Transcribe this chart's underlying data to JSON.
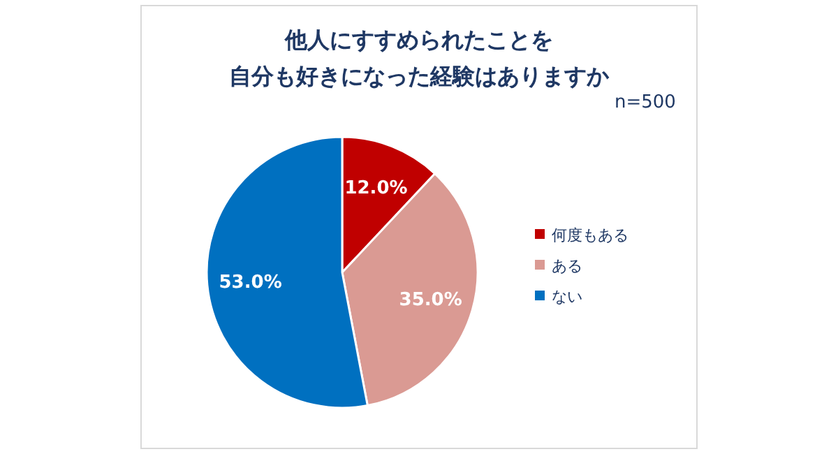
{
  "chart_data": {
    "type": "pie",
    "title": "他人にすすめられたことを",
    "subtitle": "自分も好きになった経験はありますか",
    "annotations": [
      "n=500"
    ],
    "categories": [
      "何度もある",
      "ある",
      "ない"
    ],
    "values": [
      12,
      35,
      53
    ],
    "value_labels": [
      "12.0%",
      "35.0%",
      "53.0%"
    ],
    "colors": [
      "#c00000",
      "#da9a93",
      "#0070c0"
    ],
    "legend": "right"
  }
}
